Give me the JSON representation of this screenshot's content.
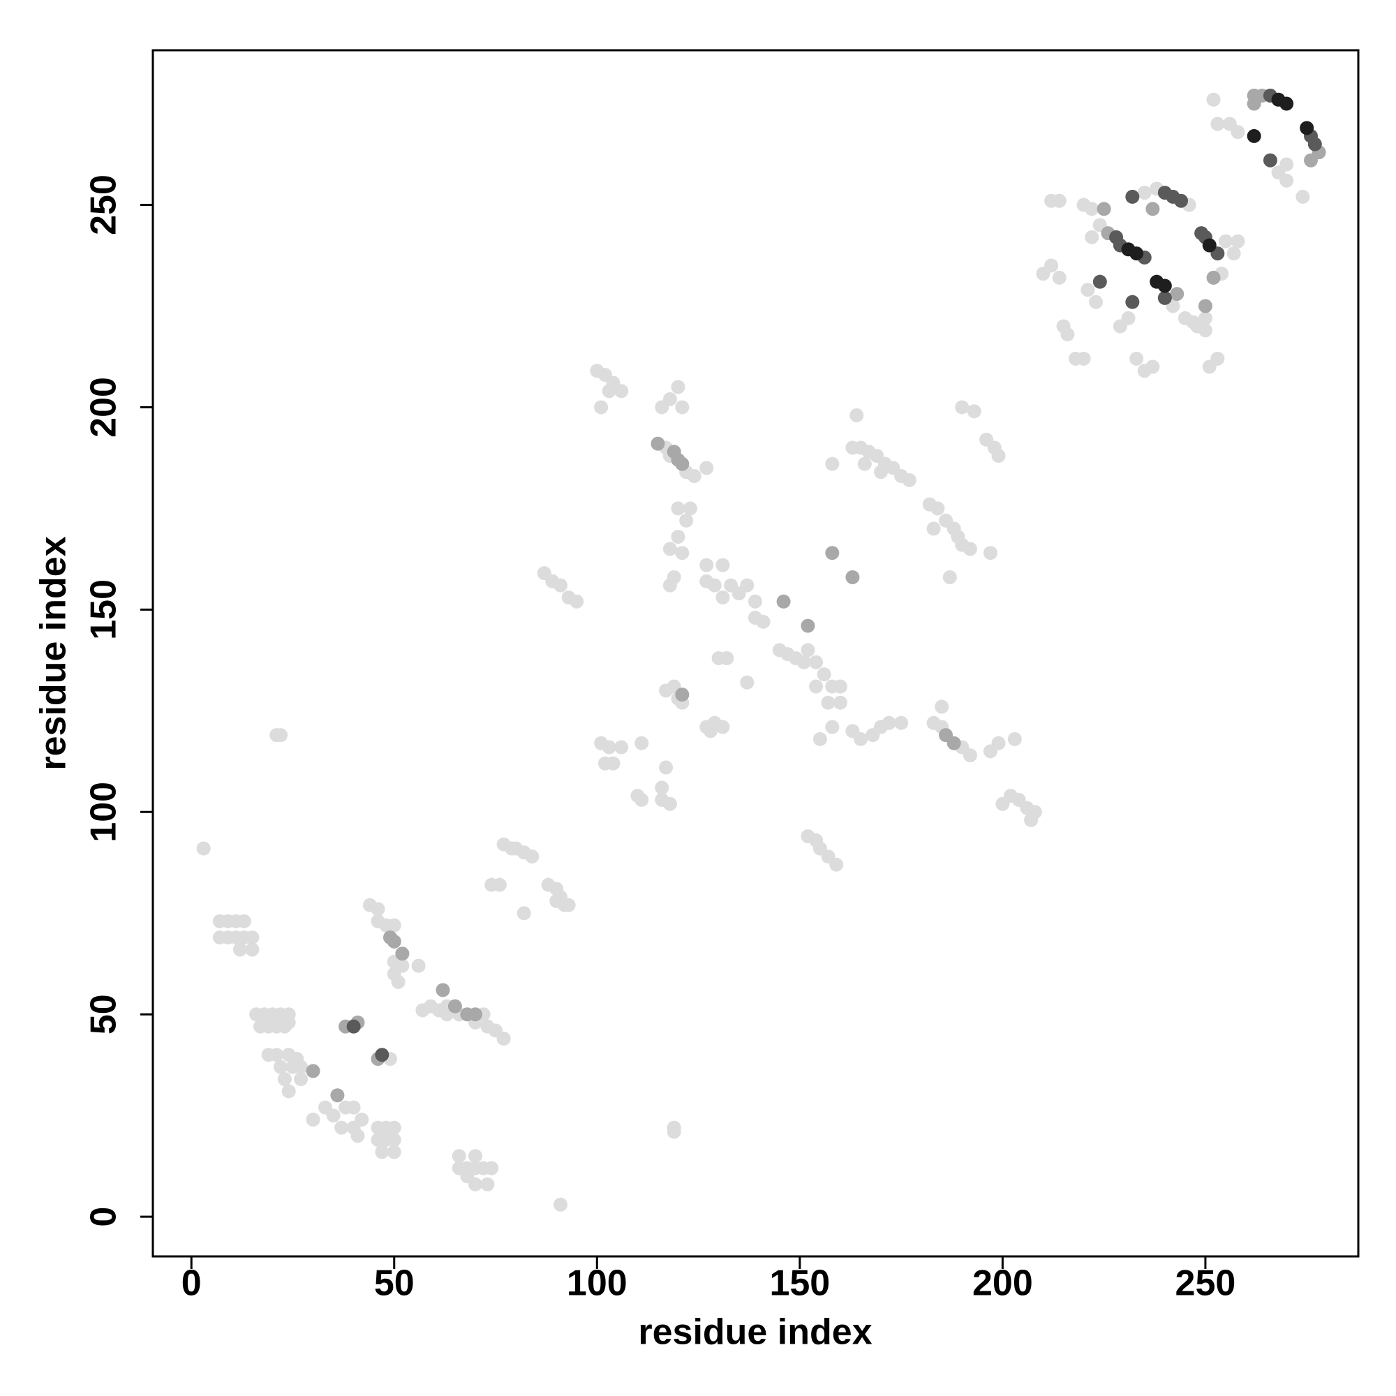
{
  "chart_data": {
    "type": "scatter",
    "xlabel": "residue index",
    "ylabel": "residue index",
    "xlim": [
      -9.5,
      287.7
    ],
    "ylim": [
      -9.8,
      288.2
    ],
    "xticks": [
      0,
      50,
      100,
      150,
      200,
      250
    ],
    "yticks": [
      0,
      50,
      100,
      150,
      200,
      250
    ],
    "series": [
      {
        "color": "#dcdcdc",
        "x": [
          3,
          7,
          9,
          11,
          13,
          7,
          9,
          11,
          13,
          15,
          12,
          15,
          21,
          22,
          16,
          18,
          20,
          22,
          24,
          17,
          19,
          21,
          23,
          24,
          19,
          21,
          24,
          26,
          22,
          25,
          27,
          23,
          27,
          24,
          30,
          33,
          35,
          38,
          40,
          37,
          40,
          41,
          42,
          46,
          48,
          50,
          46,
          48,
          50,
          47,
          50,
          49,
          44,
          46,
          46,
          48,
          50,
          50,
          52,
          51,
          56,
          50,
          57,
          59,
          61,
          63,
          66,
          70,
          72,
          73,
          75,
          77,
          63,
          66,
          70,
          68,
          66,
          70,
          72,
          74,
          70,
          73,
          68,
          74,
          76,
          77,
          79,
          80,
          82,
          84,
          82,
          88,
          90,
          91,
          92,
          93,
          90,
          91,
          87,
          89,
          91,
          93,
          95,
          100,
          102,
          104,
          103,
          106,
          101,
          101,
          103,
          106,
          102,
          104,
          111,
          110,
          111,
          116,
          116,
          118,
          117,
          119,
          119,
          117,
          119,
          120,
          121,
          116,
          118,
          120,
          121,
          117,
          122,
          124,
          118,
          127,
          120,
          122,
          120,
          118,
          121,
          119,
          118,
          123,
          127,
          131,
          127,
          129,
          133,
          131,
          135,
          137,
          139,
          139,
          141,
          137,
          130,
          132,
          127,
          129,
          131,
          128,
          145,
          147,
          149,
          152,
          151,
          154,
          156,
          154,
          158,
          160,
          157,
          160,
          155,
          158,
          152,
          154,
          155,
          157,
          159,
          158,
          164,
          163,
          165,
          167,
          169,
          171,
          173,
          175,
          177,
          166,
          170,
          163,
          165,
          168,
          170,
          172,
          175,
          182,
          184,
          186,
          188,
          189,
          190,
          192,
          183,
          187,
          197,
          183,
          185,
          190,
          192,
          185,
          190,
          193,
          196,
          198,
          199,
          197,
          199,
          203,
          200,
          202,
          204,
          206,
          208,
          207,
          210,
          212,
          214,
          212,
          214,
          215,
          216,
          218,
          220,
          220,
          222,
          224,
          222,
          221,
          223,
          229,
          231,
          233,
          235,
          237,
          235,
          238,
          246,
          242,
          245,
          247,
          248,
          250,
          250,
          251,
          253,
          254,
          255,
          257,
          258,
          252,
          253,
          256,
          258,
          268,
          270,
          274,
          270
        ],
        "values": [
          91,
          73,
          73,
          73,
          73,
          69,
          69,
          69,
          69,
          69,
          66,
          66,
          119,
          119,
          50,
          50,
          50,
          50,
          50,
          47,
          47,
          47,
          47,
          48,
          40,
          40,
          40,
          39,
          37,
          37,
          37,
          34,
          34,
          31,
          24,
          27,
          25,
          27,
          27,
          22,
          22,
          20,
          24,
          22,
          22,
          22,
          19,
          19,
          19,
          16,
          16,
          39,
          77,
          76,
          73,
          72,
          72,
          63,
          62,
          58,
          62,
          60,
          51,
          52,
          51,
          52,
          50,
          48,
          50,
          47,
          46,
          44,
          50,
          15,
          15,
          12,
          12,
          12,
          12,
          12,
          8,
          8,
          10,
          82,
          82,
          92,
          91,
          91,
          90,
          89,
          75,
          82,
          81,
          79,
          77,
          77,
          78,
          3,
          159,
          157,
          156,
          153,
          152,
          209,
          208,
          206,
          204,
          204,
          200,
          117,
          116,
          116,
          112,
          112,
          117,
          104,
          103,
          106,
          103,
          102,
          111,
          21,
          22,
          130,
          131,
          128,
          127,
          200,
          202,
          205,
          200,
          190,
          184,
          183,
          188,
          185,
          175,
          172,
          168,
          165,
          164,
          158,
          156,
          175,
          161,
          161,
          157,
          156,
          156,
          153,
          154,
          156,
          152,
          148,
          147,
          132,
          138,
          138,
          121,
          122,
          121,
          120,
          140,
          139,
          138,
          140,
          137,
          137,
          134,
          131,
          131,
          131,
          127,
          127,
          118,
          121,
          94,
          93,
          91,
          89,
          87,
          186,
          198,
          190,
          190,
          189,
          188,
          186,
          185,
          183,
          182,
          186,
          184,
          120,
          118,
          119,
          121,
          122,
          122,
          176,
          175,
          172,
          170,
          168,
          166,
          165,
          170,
          158,
          164,
          122,
          121,
          116,
          114,
          126,
          200,
          199,
          192,
          190,
          188,
          115,
          117,
          118,
          102,
          104,
          103,
          101,
          100,
          98,
          233,
          235,
          232,
          251,
          251,
          220,
          218,
          212,
          212,
          250,
          249,
          245,
          242,
          229,
          226,
          220,
          222,
          212,
          209,
          210,
          253,
          254,
          250,
          225,
          222,
          221,
          220,
          219,
          222,
          210,
          212,
          233,
          241,
          238,
          241,
          276,
          270,
          270,
          268,
          258,
          256,
          252,
          260
        ]
      },
      {
        "color": "#a8a8a8",
        "x": [
          30,
          36,
          41,
          38,
          46,
          49,
          50,
          52,
          62,
          65,
          68,
          70,
          121,
          115,
          119,
          120,
          121,
          146,
          152,
          158,
          163,
          186,
          188,
          226,
          225,
          250,
          252,
          262,
          264,
          278,
          276,
          262,
          237,
          243
        ],
        "values": [
          36,
          30,
          48,
          47,
          39,
          69,
          68,
          65,
          56,
          52,
          50,
          50,
          129,
          191,
          189,
          187,
          186,
          152,
          146,
          164,
          158,
          119,
          117,
          243,
          249,
          225,
          232,
          275,
          277,
          263,
          261,
          277,
          249,
          228
        ]
      },
      {
        "color": "#5a5a5a",
        "x": [
          40,
          47,
          228,
          229,
          235,
          224,
          232,
          232,
          240,
          242,
          244,
          240,
          249,
          250,
          253,
          266,
          266,
          276,
          277
        ],
        "values": [
          47,
          40,
          242,
          240,
          237,
          231,
          226,
          252,
          253,
          252,
          251,
          227,
          243,
          242,
          238,
          277,
          261,
          267,
          265
        ]
      },
      {
        "color": "#1e1e1e",
        "x": [
          231,
          233,
          238,
          240,
          251,
          268,
          270,
          262,
          275
        ],
        "values": [
          239,
          238,
          231,
          230,
          240,
          276,
          275,
          267,
          269
        ]
      }
    ]
  }
}
